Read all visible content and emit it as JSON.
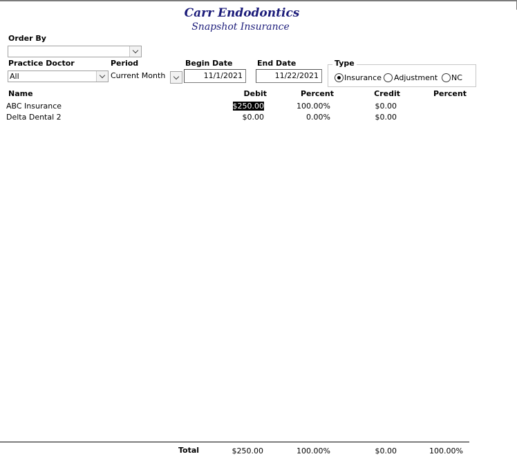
{
  "report": {
    "title": "Carr Endodontics",
    "subtitle": "Snapshot Insurance"
  },
  "filters": {
    "order_by_label": "Order By",
    "order_by_value": "",
    "practice_doctor_label": "Practice Doctor",
    "practice_doctor_value": "All",
    "period_label": "Period",
    "period_value": "Current Month",
    "begin_date_label": "Begin Date",
    "begin_date_value": "11/1/2021",
    "end_date_label": "End Date",
    "end_date_value": "11/22/2021",
    "type_label": "Type",
    "type_options": [
      "Insurance",
      "Adjustment",
      "NC"
    ],
    "type_selected": "Insurance"
  },
  "table": {
    "headers": {
      "name": "Name",
      "debit": "Debit",
      "percent1": "Percent",
      "credit": "Credit",
      "percent2": "Percent"
    },
    "rows": [
      {
        "name": "ABC Insurance",
        "debit": "$250.00",
        "percent1": "100.00%",
        "credit": "$0.00",
        "percent2": ""
      },
      {
        "name": "Delta Dental 2",
        "debit": "$0.00",
        "percent1": "0.00%",
        "credit": "$0.00",
        "percent2": ""
      }
    ],
    "totals": {
      "label": "Total",
      "debit": "$250.00",
      "percent1": "100.00%",
      "credit": "$0.00",
      "percent2": "100.00%"
    }
  }
}
